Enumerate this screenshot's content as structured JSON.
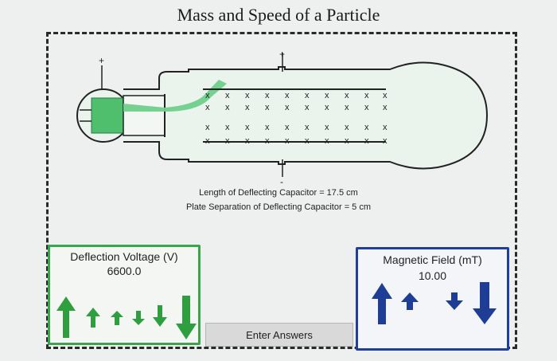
{
  "title": "Mass and Speed of a Particle",
  "capacitor": {
    "length_text": "Length of Deflecting Capacitor = 17.5 cm",
    "separation_text": "Plate Separation of Deflecting Capacitor = 5 cm"
  },
  "apparatus": {
    "plus_sign": "+",
    "minus_sign": "-",
    "field_symbol": "x"
  },
  "deflection_voltage": {
    "label": "Deflection Voltage (V)",
    "value": "6600.0",
    "color": "#2f9e3e"
  },
  "magnetic_field": {
    "label": "Magnetic Field (mT)",
    "value": "10.00",
    "color": "#1e3d96"
  },
  "enter_button": {
    "label": "Enter Answers"
  },
  "colors": {
    "beam": "#6fcf8a",
    "tube_fill": "#ebf5ee",
    "frame": "#2a2a2a"
  }
}
